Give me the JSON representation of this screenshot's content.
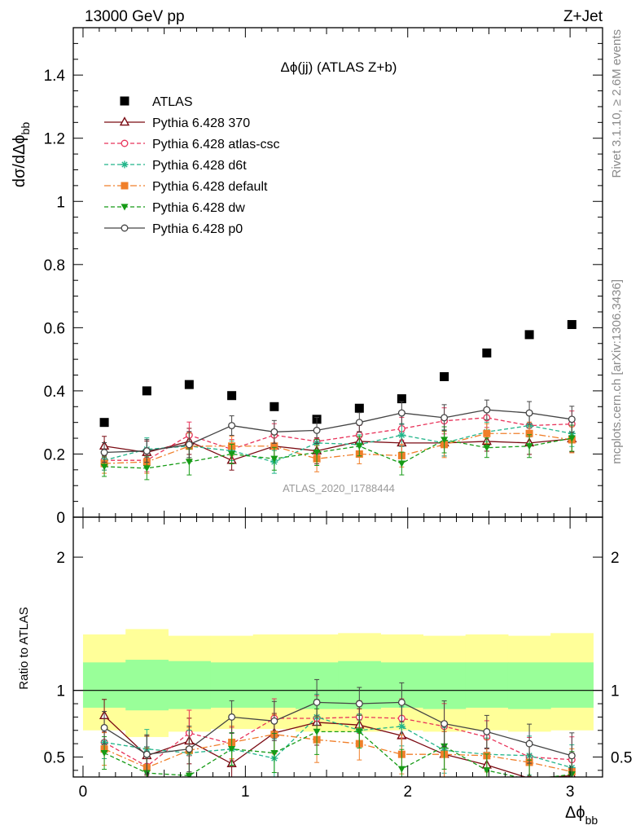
{
  "header": {
    "left": "13000 GeV pp",
    "right": "Z+Jet"
  },
  "side_texts": {
    "rivet": "Rivet 3.1.10, ≥ 2.6M events",
    "mcplots": "mcplots.cern.ch [arXiv:1306.3436]"
  },
  "chart_data": [
    {
      "type": "scatter",
      "title": "Δϕ(jj) (ATLAS Z+b)",
      "ylabel": "dσ/dΔϕ_bb",
      "watermark": "ATLAS_2020_I1788444",
      "ylim": [
        0,
        1.55
      ],
      "xlim": [
        -0.06,
        3.2
      ],
      "yticks": [
        "0",
        "0.2",
        "0.4",
        "0.6",
        "0.8",
        "1",
        "1.2",
        "1.4"
      ],
      "legend_position": "top-left",
      "x": [
        0.131,
        0.393,
        0.654,
        0.916,
        1.178,
        1.44,
        1.702,
        1.963,
        2.225,
        2.487,
        2.749,
        3.011
      ],
      "series": [
        {
          "name": "ATLAS",
          "color": "#000000",
          "marker": "square",
          "values": [
            0.3,
            0.4,
            0.42,
            0.385,
            0.35,
            0.31,
            0.345,
            0.375,
            0.445,
            0.52,
            0.578,
            0.61
          ]
        },
        {
          "name": "Pythia 6.428 370",
          "color": "#7a0a12",
          "marker": "open-triangle",
          "dash": "",
          "values": [
            0.225,
            0.205,
            0.24,
            0.18,
            0.225,
            0.21,
            0.24,
            0.235,
            0.235,
            0.24,
            0.235,
            0.248
          ]
        },
        {
          "name": "Pythia 6.428 atlas-csc",
          "color": "#e8335a",
          "marker": "open-circle",
          "dash": "5,3",
          "values": [
            0.18,
            0.18,
            0.26,
            0.215,
            0.26,
            0.24,
            0.26,
            0.28,
            0.305,
            0.315,
            0.29,
            0.295
          ]
        },
        {
          "name": "Pythia 6.428 d6t",
          "color": "#22b58a",
          "marker": "star",
          "dash": "5,3",
          "values": [
            0.18,
            0.215,
            0.225,
            0.21,
            0.175,
            0.235,
            0.23,
            0.26,
            0.235,
            0.27,
            0.29,
            0.265
          ]
        },
        {
          "name": "Pythia 6.428 default",
          "color": "#f07f2a",
          "marker": "filled-square",
          "dash": "8,3,2,3",
          "values": [
            0.17,
            0.175,
            0.225,
            0.225,
            0.225,
            0.185,
            0.2,
            0.195,
            0.23,
            0.265,
            0.265,
            0.245
          ]
        },
        {
          "name": "Pythia 6.428 dw",
          "color": "#169b16",
          "marker": "filled-triangle-down",
          "dash": "5,3",
          "values": [
            0.16,
            0.155,
            0.175,
            0.2,
            0.185,
            0.205,
            0.225,
            0.17,
            0.245,
            0.22,
            0.225,
            0.25
          ]
        },
        {
          "name": "Pythia 6.428 p0",
          "color": "#444444",
          "marker": "open-circle",
          "dash": "",
          "values": [
            0.205,
            0.21,
            0.23,
            0.29,
            0.27,
            0.275,
            0.3,
            0.33,
            0.315,
            0.34,
            0.33,
            0.31
          ]
        }
      ]
    },
    {
      "type": "line",
      "ylabel": "Ratio to ATLAS",
      "xlabel": "Δϕ_bb",
      "ylim": [
        0.35,
        2.3
      ],
      "xlim": [
        -0.06,
        3.2
      ],
      "yticks": [
        "0.5",
        "1",
        "2"
      ],
      "xticks": [
        "0",
        "1",
        "2",
        "3"
      ],
      "bin_edges": [
        0.0,
        0.262,
        0.524,
        0.785,
        1.047,
        1.309,
        1.571,
        1.833,
        2.094,
        2.356,
        2.618,
        2.88,
        3.142
      ],
      "band_inner": [
        [
          0.87,
          1.21
        ],
        [
          0.85,
          1.23
        ],
        [
          0.86,
          1.22
        ],
        [
          0.87,
          1.21
        ],
        [
          0.87,
          1.21
        ],
        [
          0.86,
          1.21
        ],
        [
          0.86,
          1.22
        ],
        [
          0.87,
          1.21
        ],
        [
          0.86,
          1.21
        ],
        [
          0.87,
          1.21
        ],
        [
          0.86,
          1.21
        ],
        [
          0.87,
          1.21
        ]
      ],
      "band_outer": [
        [
          0.7,
          1.42
        ],
        [
          0.65,
          1.46
        ],
        [
          0.69,
          1.41
        ],
        [
          0.71,
          1.41
        ],
        [
          0.71,
          1.42
        ],
        [
          0.69,
          1.42
        ],
        [
          0.69,
          1.43
        ],
        [
          0.7,
          1.42
        ],
        [
          0.69,
          1.41
        ],
        [
          0.7,
          1.42
        ],
        [
          0.69,
          1.41
        ],
        [
          0.7,
          1.43
        ]
      ],
      "x": [
        0.131,
        0.393,
        0.654,
        0.916,
        1.178,
        1.44,
        1.702,
        1.963,
        2.225,
        2.487,
        2.749,
        3.011
      ],
      "series": [
        {
          "name": "Pythia 6.428 370",
          "color": "#7a0a12",
          "marker": "open-triangle",
          "dash": "",
          "values": [
            0.81,
            0.51,
            0.62,
            0.45,
            0.68,
            0.76,
            0.74,
            0.66,
            0.52,
            0.44,
            0.34,
            0.36
          ]
        },
        {
          "name": "Pythia 6.428 atlas-csc",
          "color": "#e8335a",
          "marker": "open-circle",
          "dash": "5,3",
          "values": [
            0.61,
            0.43,
            0.68,
            0.6,
            0.79,
            0.79,
            0.8,
            0.79,
            0.73,
            0.65,
            0.5,
            0.48
          ]
        },
        {
          "name": "Pythia 6.428 d6t",
          "color": "#22b58a",
          "marker": "star",
          "dash": "5,3",
          "values": [
            0.61,
            0.56,
            0.53,
            0.56,
            0.49,
            0.8,
            0.7,
            0.73,
            0.55,
            0.52,
            0.51,
            0.42
          ]
        },
        {
          "name": "Pythia 6.428 default",
          "color": "#f07f2a",
          "marker": "filled-square",
          "dash": "8,3,2,3",
          "values": [
            0.56,
            0.42,
            0.55,
            0.61,
            0.67,
            0.63,
            0.6,
            0.52,
            0.52,
            0.51,
            0.46,
            0.39
          ]
        },
        {
          "name": "Pythia 6.428 dw",
          "color": "#169b16",
          "marker": "filled-triangle-down",
          "dash": "5,3",
          "values": [
            0.53,
            0.38,
            0.36,
            0.56,
            0.53,
            0.69,
            0.69,
            0.41,
            0.58,
            0.4,
            0.33,
            0.37
          ]
        },
        {
          "name": "Pythia 6.428 p0",
          "color": "#444444",
          "marker": "open-circle",
          "dash": "",
          "values": [
            0.72,
            0.52,
            0.56,
            0.8,
            0.77,
            0.91,
            0.9,
            0.91,
            0.75,
            0.69,
            0.6,
            0.51
          ]
        }
      ]
    }
  ]
}
